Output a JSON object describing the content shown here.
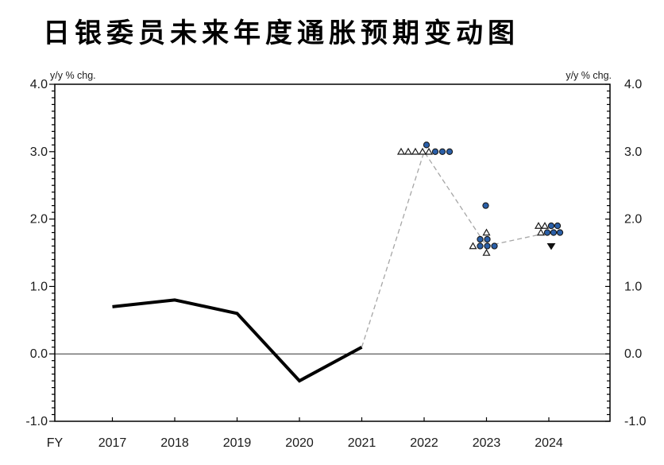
{
  "chart_data": {
    "type": "line",
    "title": "日银委员未来年度通胀预期变动图",
    "unit_left": "y/y % chg.",
    "unit_right": "y/y % chg.",
    "x_axis_prefix": "FY",
    "x_ticks": [
      "2017",
      "2018",
      "2019",
      "2020",
      "2021",
      "2022",
      "2023",
      "2024"
    ],
    "ylim": [
      -1.0,
      4.0
    ],
    "y_major_step": 1.0,
    "y_minor_step": 0.1,
    "zero_line": true,
    "grid": "off",
    "legend": "none",
    "series": [
      {
        "name": "actual_inflation_solid_line",
        "style": "solid",
        "color": "#000000",
        "x": [
          2017,
          2018,
          2019,
          2020,
          2021
        ],
        "values": [
          0.7,
          0.8,
          0.6,
          -0.4,
          0.1
        ]
      },
      {
        "name": "forecast_median_dashed_line",
        "style": "dashed",
        "color": "#a6a6a6",
        "x": [
          2021,
          2022,
          2023,
          2024
        ],
        "values": [
          0.1,
          3.0,
          1.6,
          1.8
        ]
      }
    ],
    "scatter": {
      "description": "individual BOJ board member inflation forecasts",
      "marker_colors": {
        "circle_fill": "#2a5fa8",
        "triangle_fill": "#ffffff",
        "outline": "#1a1a1a",
        "down_triangle_fill": "#111111"
      },
      "points": [
        {
          "year": 2022,
          "value": 3.0,
          "marker": "triangle-up",
          "dx": -29
        },
        {
          "year": 2022,
          "value": 3.0,
          "marker": "triangle-up",
          "dx": -20
        },
        {
          "year": 2022,
          "value": 3.0,
          "marker": "triangle-up",
          "dx": -11
        },
        {
          "year": 2022,
          "value": 3.0,
          "marker": "triangle-up",
          "dx": -2
        },
        {
          "year": 2022,
          "value": 3.0,
          "marker": "triangle-up",
          "dx": 6
        },
        {
          "year": 2022,
          "value": 3.0,
          "marker": "circle",
          "dx": 14
        },
        {
          "year": 2022,
          "value": 3.0,
          "marker": "circle",
          "dx": 23
        },
        {
          "year": 2022,
          "value": 3.0,
          "marker": "circle",
          "dx": 32
        },
        {
          "year": 2022,
          "value": 3.1,
          "marker": "circle",
          "dx": 3
        },
        {
          "year": 2023,
          "value": 2.2,
          "marker": "circle",
          "dx": -1
        },
        {
          "year": 2023,
          "value": 1.8,
          "marker": "triangle-up",
          "dx": 0
        },
        {
          "year": 2023,
          "value": 1.7,
          "marker": "circle",
          "dx": -8
        },
        {
          "year": 2023,
          "value": 1.7,
          "marker": "circle",
          "dx": 1
        },
        {
          "year": 2023,
          "value": 1.6,
          "marker": "triangle-up",
          "dx": -17
        },
        {
          "year": 2023,
          "value": 1.6,
          "marker": "circle",
          "dx": -8
        },
        {
          "year": 2023,
          "value": 1.6,
          "marker": "circle",
          "dx": 1
        },
        {
          "year": 2023,
          "value": 1.6,
          "marker": "circle",
          "dx": 10
        },
        {
          "year": 2023,
          "value": 1.5,
          "marker": "triangle-up",
          "dx": 0
        },
        {
          "year": 2024,
          "value": 1.9,
          "marker": "triangle-up",
          "dx": -13
        },
        {
          "year": 2024,
          "value": 1.9,
          "marker": "triangle-up",
          "dx": -5
        },
        {
          "year": 2024,
          "value": 1.9,
          "marker": "circle",
          "dx": 3
        },
        {
          "year": 2024,
          "value": 1.9,
          "marker": "circle",
          "dx": 11
        },
        {
          "year": 2024,
          "value": 1.8,
          "marker": "triangle-up",
          "dx": -10
        },
        {
          "year": 2024,
          "value": 1.8,
          "marker": "circle",
          "dx": -2
        },
        {
          "year": 2024,
          "value": 1.8,
          "marker": "circle",
          "dx": 6
        },
        {
          "year": 2024,
          "value": 1.8,
          "marker": "circle",
          "dx": 14
        },
        {
          "year": 2024,
          "value": 1.6,
          "marker": "triangle-down",
          "dx": 3
        }
      ]
    }
  }
}
